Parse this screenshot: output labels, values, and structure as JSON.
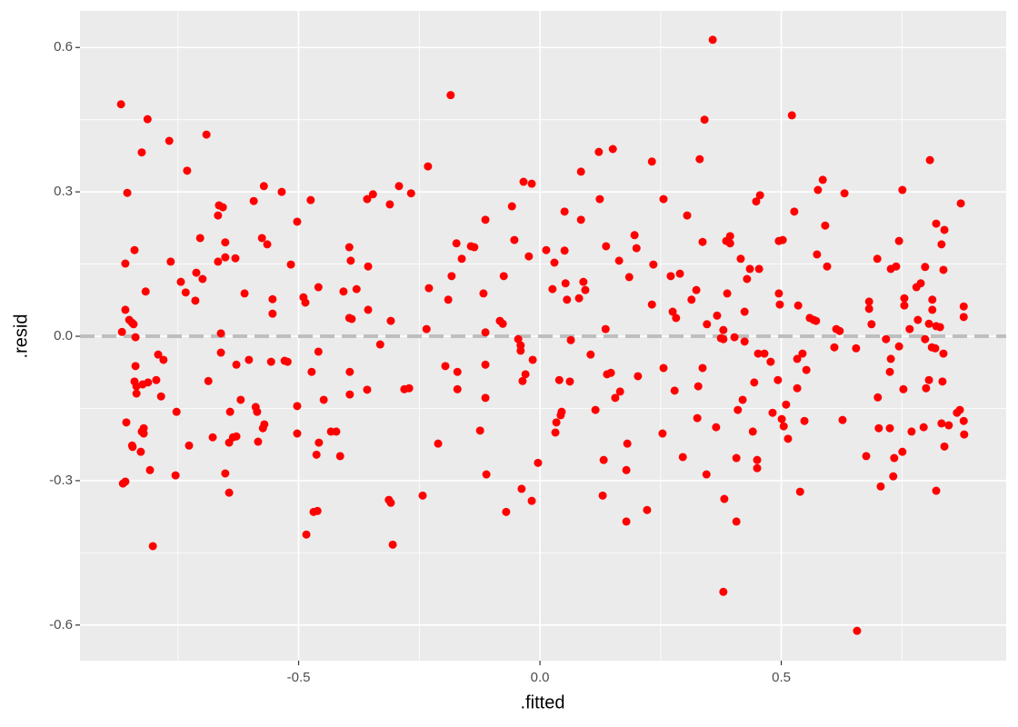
{
  "chart_data": {
    "type": "scatter",
    "x_label": ".fitted",
    "y_label": ".resid",
    "color": "#ff0000",
    "xlim": [
      -0.953,
      0.966
    ],
    "ylim": [
      -0.674,
      0.676
    ],
    "xticks": [
      -0.5,
      {
        "value": 0,
        "label": "0.0"
      },
      0.5
    ],
    "yticks": [
      -0.6,
      -0.3,
      {
        "value": 0,
        "label": "0.0"
      },
      0.3,
      0.6
    ],
    "x_minor": [
      -0.75,
      -0.25,
      0.25,
      0.75
    ],
    "y_minor": [
      -0.45,
      -0.15,
      0.15,
      0.45
    ],
    "grid": true,
    "hline": {
      "value": 0,
      "color": "#bebebe",
      "dashed": true
    },
    "x": [
      -0.868,
      -0.866,
      -0.864,
      -0.859,
      -0.859,
      -0.859,
      -0.857,
      -0.855,
      -0.851,
      -0.845,
      -0.842,
      -0.844,
      -0.845,
      -0.84,
      -0.838,
      -0.838,
      -0.836,
      -0.836,
      -0.84,
      -0.827,
      -0.825,
      -0.823,
      -0.825,
      -0.821,
      -0.821,
      -0.817,
      -0.813,
      -0.812,
      -0.808,
      -0.802,
      -0.795,
      -0.791,
      -0.78,
      -0.785,
      -0.768,
      -0.765,
      -0.755,
      -0.753,
      -0.744,
      -0.731,
      -0.734,
      -0.727,
      -0.714,
      -0.712,
      -0.704,
      -0.699,
      -0.691,
      -0.687,
      -0.678,
      -0.667,
      -0.667,
      -0.665,
      -0.661,
      -0.661,
      -0.657,
      -0.652,
      -0.652,
      -0.652,
      -0.644,
      -0.644,
      -0.642,
      -0.636,
      -0.631,
      -0.629,
      -0.629,
      -0.62,
      -0.612,
      -0.603,
      -0.593,
      -0.589,
      -0.586,
      -0.584,
      -0.576,
      -0.572,
      -0.574,
      -0.571,
      -0.565,
      -0.557,
      -0.554,
      -0.554,
      -0.535,
      -0.529,
      -0.523,
      -0.516,
      -0.503,
      -0.503,
      -0.503,
      -0.49,
      -0.486,
      -0.484,
      -0.475,
      -0.473,
      -0.469,
      -0.463,
      -0.461,
      -0.459,
      -0.458,
      -0.459,
      -0.448,
      -0.433,
      -0.422,
      -0.414,
      -0.407,
      -0.395,
      -0.392,
      -0.395,
      -0.394,
      -0.394,
      -0.39,
      -0.38,
      -0.356,
      -0.358,
      -0.358,
      -0.356,
      -0.346,
      -0.331,
      -0.313,
      -0.311,
      -0.309,
      -0.309,
      -0.305,
      -0.292,
      -0.281,
      -0.271,
      -0.267,
      -0.243,
      -0.235,
      -0.232,
      -0.23,
      -0.211,
      -0.196,
      -0.19,
      -0.185,
      -0.183,
      -0.173,
      -0.171,
      -0.171,
      -0.162,
      -0.143,
      -0.136,
      -0.124,
      -0.113,
      -0.113,
      -0.113,
      -0.113,
      -0.111,
      -0.117,
      -0.083,
      -0.077,
      -0.075,
      -0.07,
      -0.058,
      -0.053,
      -0.045,
      -0.04,
      -0.04,
      -0.036,
      -0.038,
      -0.034,
      -0.03,
      -0.023,
      -0.017,
      -0.015,
      -0.017,
      -0.004,
      0.013,
      0.03,
      0.032,
      0.034,
      0.04,
      0.043,
      0.045,
      0.051,
      0.051,
      0.053,
      0.056,
      0.064,
      0.062,
      0.026,
      0.085,
      0.085,
      0.09,
      0.094,
      0.081,
      0.105,
      0.115,
      0.122,
      0.124,
      0.132,
      0.13,
      0.136,
      0.137,
      0.139,
      0.147,
      0.151,
      0.156,
      0.164,
      0.166,
      0.179,
      0.179,
      0.181,
      0.185,
      0.196,
      0.2,
      0.203,
      0.222,
      0.232,
      0.235,
      0.232,
      0.254,
      0.256,
      0.256,
      0.271,
      0.275,
      0.282,
      0.279,
      0.29,
      0.296,
      0.305,
      0.314,
      0.324,
      0.326,
      0.328,
      0.331,
      0.341,
      0.337,
      0.337,
      0.345,
      0.346,
      0.358,
      0.365,
      0.367,
      0.375,
      0.38,
      0.38,
      0.38,
      0.382,
      0.386,
      0.388,
      0.394,
      0.394,
      0.403,
      0.407,
      0.407,
      0.41,
      0.416,
      0.42,
      0.424,
      0.424,
      0.429,
      0.435,
      0.441,
      0.444,
      0.448,
      0.45,
      0.45,
      0.456,
      0.454,
      0.452,
      0.465,
      0.478,
      0.482,
      0.493,
      0.495,
      0.503,
      0.495,
      0.497,
      0.501,
      0.505,
      0.51,
      0.514,
      0.522,
      0.527,
      0.533,
      0.535,
      0.539,
      0.533,
      0.544,
      0.548,
      0.552,
      0.559,
      0.567,
      0.572,
      0.574,
      0.576,
      0.586,
      0.591,
      0.595,
      0.61,
      0.614,
      0.621,
      0.627,
      0.631,
      0.655,
      0.657,
      0.676,
      0.682,
      0.682,
      0.687,
      0.7,
      0.699,
      0.702,
      0.706,
      0.717,
      0.725,
      0.725,
      0.727,
      0.727,
      0.732,
      0.738,
      0.734,
      0.744,
      0.744,
      0.751,
      0.751,
      0.755,
      0.755,
      0.753,
      0.77,
      0.766,
      0.78,
      0.783,
      0.789,
      0.795,
      0.798,
      0.8,
      0.798,
      0.806,
      0.808,
      0.806,
      0.813,
      0.813,
      0.812,
      0.819,
      0.821,
      0.821,
      0.821,
      0.829,
      0.832,
      0.834,
      0.832,
      0.836,
      0.836,
      0.838,
      0.838,
      0.847,
      0.864,
      0.87,
      0.872,
      0.878,
      0.878,
      0.878,
      0.879
    ],
    "y": [
      0.482,
      0.009,
      -0.306,
      -0.302,
      0.151,
      0.055,
      -0.179,
      0.298,
      0.034,
      0.028,
      0.025,
      -0.23,
      -0.227,
      0.179,
      -0.062,
      -0.002,
      -0.104,
      -0.119,
      -0.094,
      -0.24,
      0.382,
      -0.1,
      -0.198,
      -0.202,
      -0.191,
      0.093,
      0.451,
      -0.096,
      -0.278,
      -0.436,
      -0.091,
      -0.038,
      -0.049,
      -0.125,
      0.406,
      0.155,
      -0.289,
      -0.157,
      0.113,
      0.344,
      0.091,
      -0.227,
      0.074,
      0.132,
      0.204,
      0.119,
      0.419,
      -0.093,
      -0.21,
      0.251,
      0.155,
      0.272,
      0.006,
      -0.034,
      0.268,
      0.164,
      0.195,
      -0.285,
      -0.325,
      -0.221,
      -0.157,
      -0.21,
      0.162,
      -0.208,
      -0.059,
      -0.132,
      0.089,
      -0.049,
      0.281,
      -0.147,
      -0.157,
      -0.219,
      0.204,
      0.312,
      -0.191,
      -0.183,
      0.191,
      -0.053,
      0.077,
      0.047,
      0.3,
      -0.051,
      -0.053,
      0.149,
      -0.145,
      -0.202,
      0.238,
      0.081,
      0.07,
      -0.412,
      0.283,
      -0.074,
      -0.365,
      -0.246,
      -0.363,
      -0.032,
      -0.221,
      0.102,
      -0.132,
      -0.198,
      -0.198,
      -0.249,
      0.093,
      0.185,
      0.157,
      0.038,
      -0.074,
      -0.121,
      0.036,
      0.098,
      0.055,
      -0.111,
      0.285,
      0.145,
      0.295,
      -0.017,
      -0.34,
      0.274,
      0.032,
      -0.346,
      -0.433,
      0.312,
      -0.11,
      -0.108,
      0.297,
      -0.331,
      0.015,
      0.353,
      0.1,
      -0.223,
      -0.062,
      0.076,
      0.501,
      0.125,
      0.193,
      -0.074,
      -0.11,
      0.161,
      0.187,
      0.185,
      -0.196,
      0.242,
      0.008,
      -0.128,
      -0.059,
      -0.287,
      0.089,
      0.032,
      0.026,
      0.125,
      -0.365,
      0.27,
      0.2,
      -0.006,
      -0.019,
      -0.03,
      -0.093,
      -0.317,
      0.321,
      -0.079,
      0.166,
      0.317,
      -0.049,
      -0.342,
      -0.263,
      0.179,
      0.153,
      -0.2,
      -0.179,
      -0.091,
      -0.164,
      -0.157,
      0.259,
      0.178,
      0.11,
      0.076,
      -0.008,
      -0.094,
      0.098,
      0.342,
      0.242,
      0.113,
      0.096,
      0.079,
      -0.038,
      -0.153,
      0.383,
      0.285,
      -0.257,
      -0.331,
      0.015,
      0.187,
      -0.079,
      -0.076,
      0.389,
      -0.128,
      0.157,
      -0.115,
      -0.278,
      -0.385,
      -0.223,
      0.123,
      0.21,
      0.183,
      -0.083,
      -0.361,
      0.363,
      0.149,
      0.066,
      -0.202,
      0.285,
      -0.066,
      0.125,
      0.051,
      0.038,
      -0.113,
      0.13,
      -0.251,
      0.251,
      0.076,
      0.096,
      -0.17,
      -0.104,
      0.368,
      0.45,
      0.196,
      -0.066,
      -0.287,
      0.025,
      0.616,
      -0.189,
      0.043,
      -0.004,
      0.013,
      -0.006,
      -0.531,
      -0.338,
      0.198,
      0.089,
      0.208,
      0.193,
      -0.002,
      -0.253,
      -0.385,
      -0.153,
      0.161,
      -0.132,
      0.051,
      -0.011,
      0.119,
      0.14,
      -0.198,
      -0.096,
      0.28,
      -0.257,
      -0.274,
      0.293,
      0.14,
      -0.036,
      -0.036,
      -0.053,
      -0.159,
      -0.091,
      0.198,
      0.2,
      0.089,
      0.066,
      -0.172,
      -0.187,
      -0.142,
      -0.213,
      0.459,
      0.259,
      -0.047,
      0.064,
      -0.323,
      -0.108,
      -0.036,
      -0.176,
      -0.07,
      0.038,
      0.034,
      0.032,
      0.17,
      0.304,
      0.325,
      0.23,
      0.145,
      -0.023,
      0.015,
      0.011,
      -0.174,
      0.297,
      -0.025,
      -0.612,
      -0.249,
      0.057,
      0.072,
      0.025,
      -0.127,
      0.161,
      -0.191,
      -0.312,
      -0.006,
      -0.191,
      -0.074,
      -0.047,
      0.14,
      -0.291,
      0.145,
      -0.253,
      0.198,
      -0.021,
      0.304,
      -0.24,
      0.079,
      0.064,
      -0.11,
      -0.198,
      0.015,
      0.102,
      0.034,
      0.11,
      -0.189,
      0.144,
      -0.108,
      -0.006,
      0.026,
      0.366,
      -0.091,
      0.076,
      0.055,
      -0.023,
      -0.025,
      -0.321,
      0.234,
      0.021,
      0.019,
      -0.181,
      -0.094,
      0.191,
      -0.036,
      0.138,
      0.221,
      -0.229,
      -0.185,
      -0.159,
      -0.153,
      0.276,
      0.062,
      0.04,
      -0.176,
      -0.204
    ]
  }
}
